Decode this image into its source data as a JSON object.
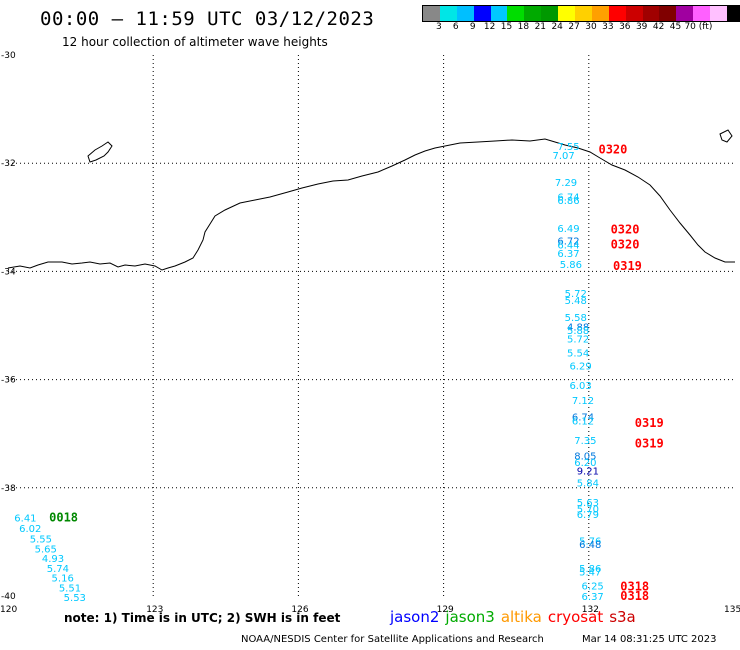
{
  "header": {
    "title": "00:00 – 11:59 UTC 03/12/2023",
    "subtitle": "12 hour collection of altimeter wave heights"
  },
  "color_scale": {
    "colors": [
      "#888888",
      "#00e6e6",
      "#00bfff",
      "#0000ff",
      "#00c8ff",
      "#00dd00",
      "#00aa00",
      "#009900",
      "#ffff00",
      "#ffd000",
      "#ffa000",
      "#ff0000",
      "#cc0000",
      "#a00000",
      "#800000",
      "#a000a0",
      "#ff60ff",
      "#ffc0ff",
      "#000000"
    ],
    "labels": [
      "3",
      "6",
      "9",
      "12",
      "15",
      "18",
      "21",
      "24",
      "27",
      "30",
      "33",
      "36",
      "39",
      "42",
      "45",
      "70 (ft)"
    ]
  },
  "axes": {
    "y_labels": [
      "-30",
      "-32",
      "-34",
      "-36",
      "-38",
      "-40"
    ],
    "x_labels": [
      "120",
      "123",
      "126",
      "129",
      "132",
      "135"
    ]
  },
  "tracks": {
    "east": {
      "values": [
        {
          "v": "7.55",
          "lon": 131.35,
          "lat": -31.68,
          "c": "#00c8ff"
        },
        {
          "v": "7.07",
          "lon": 131.25,
          "lat": -31.85,
          "c": "#00c8ff"
        },
        {
          "v": "7.29",
          "lon": 131.3,
          "lat": -32.35,
          "c": "#00c8ff"
        },
        {
          "v": "6.74",
          "lon": 131.35,
          "lat": -32.62,
          "c": "#00c8ff"
        },
        {
          "v": "6.86",
          "lon": 131.35,
          "lat": -32.68,
          "c": "#00c8ff"
        },
        {
          "v": "6.49",
          "lon": 131.35,
          "lat": -33.2,
          "c": "#00c8ff"
        },
        {
          "v": "6.72",
          "lon": 131.35,
          "lat": -33.43,
          "c": "#0077dd"
        },
        {
          "v": "6.44",
          "lon": 131.35,
          "lat": -33.5,
          "c": "#00c8ff"
        },
        {
          "v": "6.37",
          "lon": 131.35,
          "lat": -33.66,
          "c": "#00c8ff"
        },
        {
          "v": "5.86",
          "lon": 131.4,
          "lat": -33.86,
          "c": "#00c8ff"
        },
        {
          "v": "5.72",
          "lon": 131.5,
          "lat": -34.4,
          "c": "#00c8ff"
        },
        {
          "v": "5.48",
          "lon": 131.5,
          "lat": -34.53,
          "c": "#00c8ff"
        },
        {
          "v": "5.58",
          "lon": 131.5,
          "lat": -34.84,
          "c": "#00c8ff"
        },
        {
          "v": "4.88",
          "lon": 131.55,
          "lat": -35.02,
          "c": "#0077dd"
        },
        {
          "v": "5.88",
          "lon": 131.55,
          "lat": -35.08,
          "c": "#00c8ff"
        },
        {
          "v": "5.72",
          "lon": 131.55,
          "lat": -35.24,
          "c": "#00c8ff"
        },
        {
          "v": "5.54",
          "lon": 131.55,
          "lat": -35.5,
          "c": "#00c8ff"
        },
        {
          "v": "6.29",
          "lon": 131.6,
          "lat": -35.74,
          "c": "#00c8ff"
        },
        {
          "v": "6.03",
          "lon": 131.6,
          "lat": -36.1,
          "c": "#00c8ff"
        },
        {
          "v": "7.12",
          "lon": 131.65,
          "lat": -36.38,
          "c": "#00c8ff"
        },
        {
          "v": "6.74",
          "lon": 131.65,
          "lat": -36.68,
          "c": "#0077dd"
        },
        {
          "v": "6.12",
          "lon": 131.65,
          "lat": -36.76,
          "c": "#00c8ff"
        },
        {
          "v": "7.35",
          "lon": 131.7,
          "lat": -37.12,
          "c": "#00c8ff"
        },
        {
          "v": "8.05",
          "lon": 131.7,
          "lat": -37.4,
          "c": "#0077dd"
        },
        {
          "v": "6.20",
          "lon": 131.7,
          "lat": -37.52,
          "c": "#00c8ff"
        },
        {
          "v": "9.21",
          "lon": 131.75,
          "lat": -37.68,
          "c": "#0000aa"
        },
        {
          "v": "5.84",
          "lon": 131.75,
          "lat": -37.9,
          "c": "#00c8ff"
        },
        {
          "v": "5.63",
          "lon": 131.75,
          "lat": -38.26,
          "c": "#00c8ff"
        },
        {
          "v": "5.70",
          "lon": 131.75,
          "lat": -38.38,
          "c": "#00c8ff"
        },
        {
          "v": "6.79",
          "lon": 131.75,
          "lat": -38.48,
          "c": "#00c8ff"
        },
        {
          "v": "5.76",
          "lon": 131.8,
          "lat": -38.97,
          "c": "#00c8ff"
        },
        {
          "v": "6.48",
          "lon": 131.8,
          "lat": -39.04,
          "c": "#0077dd"
        },
        {
          "v": "5.86",
          "lon": 131.8,
          "lat": -39.48,
          "c": "#00c8ff"
        },
        {
          "v": "5.47",
          "lon": 131.8,
          "lat": -39.55,
          "c": "#00c8ff"
        },
        {
          "v": "6.25",
          "lon": 131.85,
          "lat": -39.81,
          "c": "#00c8ff"
        },
        {
          "v": "6.37",
          "lon": 131.85,
          "lat": -40.0,
          "c": "#00c8ff"
        }
      ],
      "times": [
        {
          "t": "0320",
          "lon": 132.2,
          "lat": -31.75,
          "c": "#ff0000"
        },
        {
          "t": "0320",
          "lon": 132.45,
          "lat": -33.23,
          "c": "#ff0000"
        },
        {
          "t": "0320",
          "lon": 132.45,
          "lat": -33.5,
          "c": "#ff0000"
        },
        {
          "t": "0319",
          "lon": 132.5,
          "lat": -33.9,
          "c": "#ff0000"
        },
        {
          "t": "0319",
          "lon": 132.95,
          "lat": -36.8,
          "c": "#ff0000"
        },
        {
          "t": "0319",
          "lon": 132.95,
          "lat": -37.18,
          "c": "#ff0000"
        },
        {
          "t": "0318",
          "lon": 132.65,
          "lat": -39.82,
          "c": "#ff0000"
        },
        {
          "t": "0318",
          "lon": 132.65,
          "lat": -40.0,
          "c": "#ff0000"
        }
      ]
    },
    "west": {
      "values": [
        {
          "v": "6.41",
          "lon": 120.13,
          "lat": -38.55,
          "c": "#00c8ff"
        },
        {
          "v": "6.02",
          "lon": 120.23,
          "lat": -38.74,
          "c": "#00c8ff"
        },
        {
          "v": "5.55",
          "lon": 120.45,
          "lat": -38.94,
          "c": "#00c8ff"
        },
        {
          "v": "5.65",
          "lon": 120.55,
          "lat": -39.12,
          "c": "#00c8ff"
        },
        {
          "v": "4.93",
          "lon": 120.7,
          "lat": -39.3,
          "c": "#00c8ff"
        },
        {
          "v": "5.74",
          "lon": 120.8,
          "lat": -39.48,
          "c": "#00c8ff"
        },
        {
          "v": "5.16",
          "lon": 120.9,
          "lat": -39.66,
          "c": "#00c8ff"
        },
        {
          "v": "5.51",
          "lon": 121.05,
          "lat": -39.84,
          "c": "#00c8ff"
        },
        {
          "v": "5.53",
          "lon": 121.15,
          "lat": -40.02,
          "c": "#00c8ff"
        }
      ],
      "times": [
        {
          "t": "0018",
          "lon": 120.85,
          "lat": -38.55,
          "c": "#008800"
        }
      ]
    }
  },
  "note": "note:  1) Time is in UTC; 2) SWH is in feet",
  "legend": [
    {
      "label": "jason2",
      "color": "#0000ff"
    },
    {
      "label": "jason3",
      "color": "#00aa00"
    },
    {
      "label": "altika",
      "color": "#ff9900"
    },
    {
      "label": "cryosat",
      "color": "#ff0000"
    },
    {
      "label": "s3a",
      "color": "#cc0000"
    }
  ],
  "credit": "NOAA/NESDIS Center for Satellite Applications and Research",
  "timestamp": "Mar 14 08:31:25 UTC 2023"
}
